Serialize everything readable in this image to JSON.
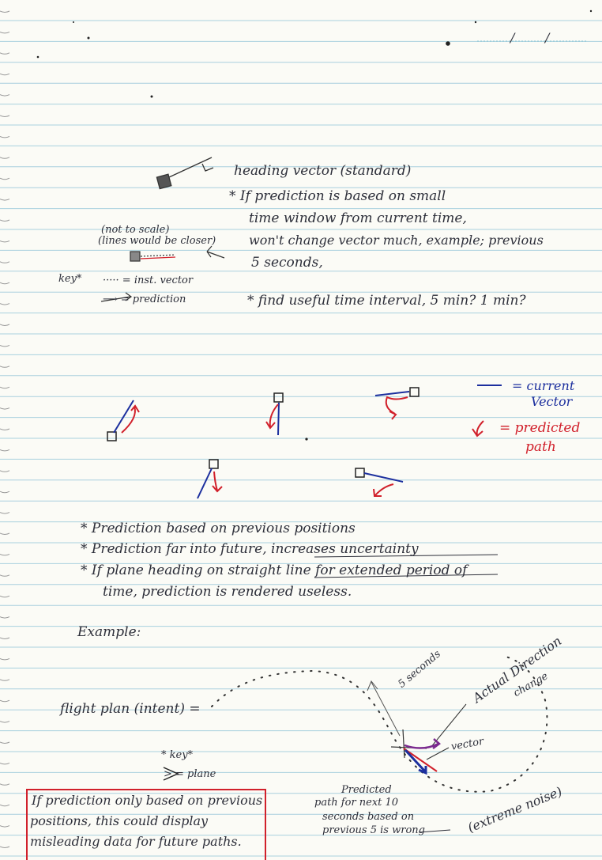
{
  "header": {
    "date_separator_1": "/",
    "date_separator_2": "/"
  },
  "section_top": {
    "heading_vector_label": "heading vector (standard)",
    "note_lines": [
      "* If prediction is based on small",
      "time window from current time,",
      "won't change vector much, example; previous",
      "5 seconds,"
    ],
    "scale_note_lines": [
      "(not to scale)",
      "(lines would be closer)"
    ],
    "key_label": "key*",
    "key_items": [
      "····· = inst. vector",
      "⟶ = prediction"
    ],
    "interval_note": "* find useful time interval, 5 min? 1 min?"
  },
  "legend": {
    "current_vector_lines": [
      "= current",
      "Vector"
    ],
    "predicted_path_lines": [
      "= predicted",
      "path"
    ],
    "colors": {
      "current": "#1c2f9e",
      "predicted": "#d1202b",
      "ink": "#2d2f3a"
    }
  },
  "bullets": [
    "* Prediction based on previous positions",
    "* Prediction far into future, increases uncertainty",
    "* If plane heading on straight line for extended period of",
    "time, prediction is rendered useless."
  ],
  "example": {
    "heading": "Example:",
    "flight_plan_label": "flight plan (intent) =",
    "five_seconds_label": "5 seconds",
    "actual_direction_lines": [
      "Actual Direction",
      "change"
    ],
    "vector_label": "vector",
    "key_title": "* key*",
    "key_plane": "> = plane",
    "predicted_note_lines": [
      "Predicted",
      "path for next 10",
      "seconds based on",
      "previous 5 is wrong"
    ],
    "extreme_noise": "(extreme noise)"
  },
  "boxed_note": {
    "lines": [
      "If prediction only based on previous",
      "positions, this could display",
      "misleading data for future paths."
    ]
  }
}
